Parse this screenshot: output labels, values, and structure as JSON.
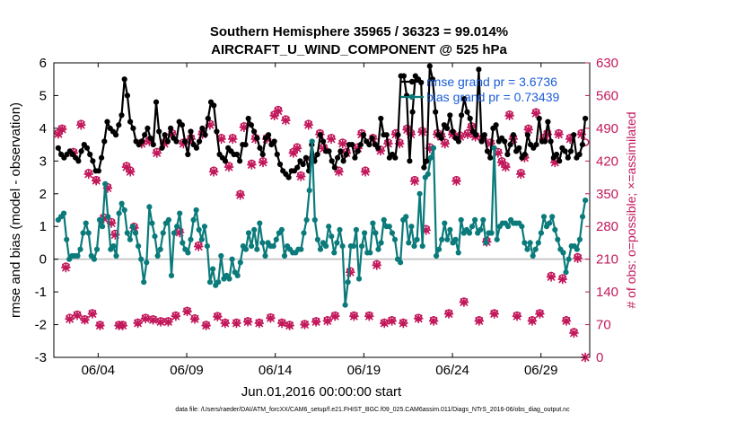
{
  "chart_data": {
    "type": "line",
    "title": "Southern Hemisphere 35965 / 36323 = 99.014%",
    "subtitle": "AIRCRAFT_U_WIND_COMPONENT @ 525 hPa",
    "xlabel": "Jun.01,2016 00:00:00 start",
    "ylabel": "rmse and bias (model - observation)",
    "ylabel_right": "# of obs: o=possible; ×=assimilated",
    "footnote": "data file: /Users/raeder/DAI/ATM_forcXX/CAM6_setup/f.e21.FHIST_BGC.f09_025.CAM6assim.011/Diags_NTrS_2016-06/obs_diag_output.nc",
    "xlim": [
      0.5,
      30.75
    ],
    "ylim": [
      -3,
      6
    ],
    "ylim_right": [
      0,
      630
    ],
    "x_ticks": [
      3,
      8,
      13,
      18,
      23,
      28
    ],
    "x_tick_labels": [
      "06/04",
      "06/09",
      "06/14",
      "06/19",
      "06/24",
      "06/29"
    ],
    "y_ticks": [
      -3,
      -2,
      -1,
      0,
      1,
      2,
      3,
      4,
      5,
      6
    ],
    "y_tick_labels": [
      "-3",
      "-2",
      "-1",
      "0",
      "1",
      "2",
      "3",
      "4",
      "5",
      "6"
    ],
    "y_right_ticks": [
      0,
      70,
      140,
      210,
      280,
      350,
      420,
      490,
      560,
      630
    ],
    "y_right_tick_labels": [
      "0",
      "70",
      "140",
      "210",
      "280",
      "350",
      "420",
      "490",
      "560",
      "630"
    ],
    "legend_position": "top-right",
    "colors": {
      "rmse": "#000000",
      "bias": "#0b7a7a",
      "obs": "#c2185b",
      "zero": "#bbbbbb",
      "legend_text": "#1a5cd8",
      "right_axis": "#c2185b"
    },
    "series": [
      {
        "name": "rmse grand pr = 3.6736",
        "key": "rmse",
        "values": [
          3.4,
          3.2,
          3.1,
          3.2,
          3.3,
          3.2,
          3.1,
          3.0,
          3.3,
          3.5,
          3.4,
          3.2,
          3.0,
          2.7,
          2.7,
          3.1,
          3.6,
          4.2,
          4.0,
          3.9,
          3.8,
          4.1,
          4.4,
          5.5,
          5.0,
          4.2,
          4.0,
          3.6,
          3.5,
          3.6,
          3.8,
          4.0,
          3.7,
          3.5,
          4.8,
          3.9,
          3.4,
          3.8,
          3.6,
          4.0,
          3.7,
          3.6,
          4.2,
          4.1,
          3.6,
          3.2,
          3.9,
          3.5,
          3.4,
          3.6,
          4.0,
          3.8,
          4.3,
          4.8,
          4.7,
          3.9,
          3.2,
          3.1,
          3.0,
          3.4,
          3.3,
          3.2,
          3.2,
          3.0,
          3.5,
          3.5,
          4.3,
          4.1,
          3.9,
          3.7,
          3.4,
          3.2,
          3.7,
          3.8,
          3.5,
          3.6,
          3.2,
          2.9,
          2.7,
          2.6,
          2.5,
          2.7,
          2.7,
          2.8,
          3.0,
          2.9,
          3.1,
          2.7,
          3.5,
          3.0,
          3.2,
          3.8,
          3.6,
          3.3,
          3.3,
          3.0,
          2.8,
          3.1,
          3.3,
          3.0,
          3.2,
          3.5,
          3.5,
          3.1,
          3.3,
          3.5,
          3.8,
          3.6,
          3.5,
          3.7,
          3.5,
          3.4,
          4.3,
          3.8,
          3.8,
          3.1,
          3.2,
          3.1,
          3.8,
          5.6,
          5.6,
          5.0,
          3.0,
          4.5,
          5.6,
          5.5,
          5.4,
          2.8,
          3.0,
          5.9,
          5.5,
          4.5,
          3.8,
          3.7,
          4.1,
          4.0,
          4.4,
          3.9,
          3.7,
          3.6,
          4.4,
          4.9,
          4.5,
          4.3,
          3.9,
          3.8,
          5.8,
          3.6,
          3.8,
          3.3,
          3.1,
          4.0,
          4.1,
          3.6,
          3.7,
          3.6,
          3.2,
          3.5,
          3.8,
          3.3,
          3.4,
          3.1,
          3.2,
          3.8,
          3.5,
          3.4,
          3.5,
          4.3,
          3.6,
          3.6,
          4.2,
          3.6,
          3.1,
          3.2,
          3.0,
          3.4,
          3.3,
          3.1,
          3.3,
          3.8,
          3.1,
          3.2,
          3.5,
          4.3
        ]
      },
      {
        "name": "bias grand pr = 0.73439",
        "key": "bias",
        "values": [
          1.2,
          1.3,
          1.4,
          0.6,
          0.0,
          0.1,
          0.1,
          0.1,
          0.3,
          0.8,
          1.1,
          0.8,
          0.1,
          0.0,
          0.3,
          1.2,
          1.0,
          2.3,
          1.3,
          0.3,
          0.4,
          0.1,
          1.4,
          1.7,
          1.5,
          0.8,
          0.6,
          1.0,
          0.8,
          0.4,
          0.0,
          -0.7,
          -0.1,
          1.6,
          1.1,
          0.7,
          0.1,
          0.3,
          0.8,
          1.1,
          1.2,
          -0.5,
          0.8,
          1.0,
          1.4,
          0.5,
          0.3,
          0.2,
          0.6,
          1.2,
          1.5,
          0.9,
          0.6,
          1.0,
          0.4,
          -0.7,
          -0.3,
          -0.8,
          -0.7,
          0.1,
          -0.6,
          -0.5,
          -0.6,
          0.0,
          -0.4,
          -0.5,
          -0.1,
          0.4,
          0.3,
          0.8,
          0.4,
          0.9,
          0.3,
          1.1,
          0.5,
          0.1,
          0.5,
          0.4,
          0.4,
          0.6,
          0.8,
          0.9,
          0.1,
          0.4,
          0.3,
          0.2,
          0.2,
          0.3,
          0.3,
          0.8,
          1.2,
          2.1,
          3.6,
          1.2,
          0.6,
          0.3,
          0.5,
          0.4,
          1.0,
          0.7,
          0.2,
          0.5,
          0.9,
          0.4,
          -1.4,
          -0.7,
          0.4,
          0.4,
          0.9,
          -0.6,
          0.4,
          0.8,
          0.2,
          0.2,
          1.1,
          0.8,
          0.3,
          0.5,
          1.2,
          1.0,
          1.0,
          0.8,
          0.6,
          0.0,
          -0.1,
          1.2,
          1.3,
          0.5,
          1.0,
          0.4,
          0.6,
          2.0,
          0.4,
          2.5,
          2.6,
          3.1,
          3.4,
          0.1,
          0.3,
          0.6,
          1.1,
          0.6,
          0.9,
          0.5,
          0.6,
          0.2,
          1.2,
          0.8,
          0.9,
          0.8,
          1.0,
          1.2,
          0.8,
          0.9,
          1.2,
          0.5,
          0.8,
          0.8,
          3.4,
          0.6,
          1.0,
          1.1,
          1.1,
          1.0,
          1.2,
          1.1,
          1.1,
          1.1,
          1.0,
          0.5,
          0.3,
          0.5,
          0.1,
          0.3,
          0.5,
          0.8,
          1.3,
          1.0,
          1.1,
          1.3,
          0.9,
          0.6,
          0.3,
          0.2,
          -0.4,
          0.0,
          0.4,
          0.4,
          0.3,
          0.6,
          1.3,
          1.8
        ]
      },
      {
        "name": "obs_possible",
        "key": "possible",
        "values": [
          480,
          490,
          195,
          85,
          440,
          92,
          500,
          82,
          395,
          95,
          380,
          70,
          300,
          365,
          290,
          265,
          70,
          70,
          410,
          400,
          280,
          75,
          460,
          85,
          465,
          82,
          440,
          78,
          460,
          78,
          480,
          90,
          270,
          460,
          100,
          470,
          84,
          240,
          480,
          70,
          500,
          400,
          89,
          470,
          75,
          410,
          470,
          75,
          350,
          495,
          78,
          415,
          470,
          75,
          420,
          470,
          86,
          520,
          530,
          75,
          510,
          70,
          440,
          450,
          390,
          72,
          500,
          425,
          78,
          480,
          450,
          80,
          470,
          90,
          400,
          460,
          440,
          185,
          90,
          450,
          480,
          400,
          90,
          470,
          200,
          445,
          75,
          460,
          80,
          480,
          460,
          75,
          490,
          480,
          380,
          85,
          485,
          275,
          450,
          80,
          480,
          475,
          460,
          95,
          480,
          380,
          475,
          120,
          480,
          495,
          475,
          80,
          470,
          250,
          460,
          95,
          440,
          420,
          410,
          520,
          470,
          90,
          395,
          430,
          490,
          80,
          525,
          95,
          470,
          480,
          175,
          420,
          480,
          170,
          80,
          470,
          55,
          215,
          480,
          460
        ]
      },
      {
        "name": "obs_assimilated",
        "key": "assimilated",
        "values": [
          478,
          488,
          192,
          82,
          437,
          90,
          497,
          80,
          392,
          93,
          378,
          68,
          297,
          362,
          287,
          262,
          68,
          68,
          407,
          397,
          277,
          73,
          457,
          83,
          462,
          80,
          437,
          76,
          457,
          76,
          477,
          88,
          267,
          457,
          98,
          467,
          82,
          237,
          477,
          68,
          497,
          397,
          87,
          467,
          73,
          407,
          467,
          73,
          347,
          492,
          76,
          412,
          467,
          73,
          417,
          467,
          84,
          517,
          527,
          73,
          507,
          68,
          437,
          447,
          387,
          70,
          497,
          422,
          76,
          477,
          447,
          78,
          467,
          88,
          397,
          457,
          437,
          182,
          88,
          447,
          477,
          397,
          88,
          467,
          197,
          442,
          73,
          457,
          78,
          477,
          457,
          73,
          487,
          477,
          377,
          83,
          482,
          272,
          447,
          78,
          477,
          472,
          457,
          93,
          477,
          377,
          472,
          118,
          477,
          492,
          472,
          78,
          467,
          247,
          457,
          93,
          437,
          417,
          407,
          517,
          467,
          88,
          392,
          427,
          487,
          78,
          522,
          93,
          467,
          477,
          172,
          417,
          477,
          167,
          78,
          467,
          52,
          212,
          477,
          0
        ]
      }
    ]
  }
}
